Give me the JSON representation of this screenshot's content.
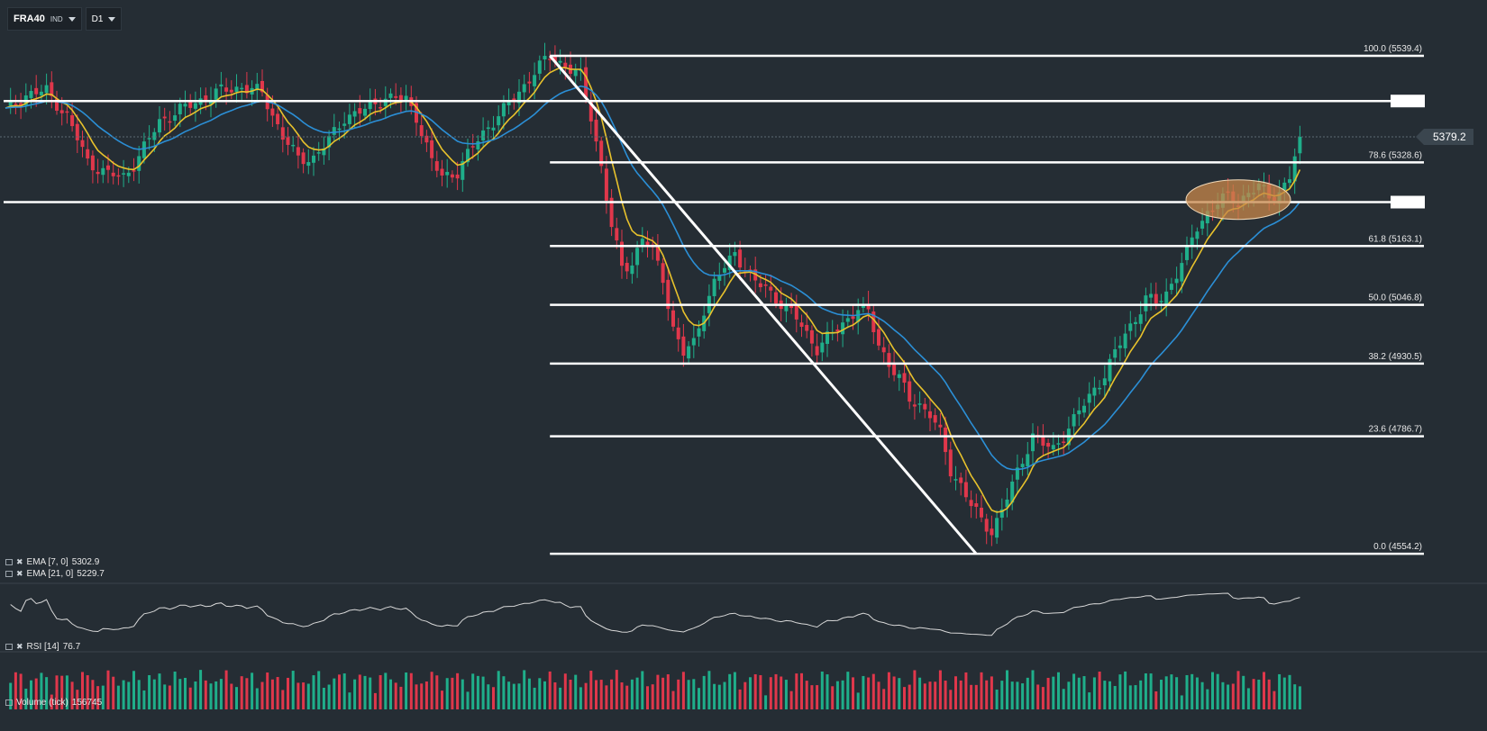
{
  "toolbar": {
    "symbol": "FRA40",
    "instrument_type": "IND",
    "timeframe": "D1"
  },
  "indicators": {
    "ema_fast": {
      "label": "EMA [7, 0]",
      "value": "5302.9",
      "color": "#e8c22c"
    },
    "ema_slow": {
      "label": "EMA [21, 0]",
      "value": "5229.7",
      "color": "#2b8fd6"
    },
    "rsi": {
      "label": "RSI [14]",
      "value": "76.7"
    },
    "volume": {
      "label": "Volume (tick)",
      "value": "156745"
    }
  },
  "current_price": "5379.2",
  "colors": {
    "background": "#252d34",
    "bull": "#1fae8a",
    "bear": "#e0374b",
    "level": "#ffffff",
    "highlight": "#c8874a"
  },
  "chart_data": {
    "type": "candlestick",
    "timeframe": "D1",
    "ylim": [
      4510,
      5600
    ],
    "current_price": 5379.2,
    "fibonacci_levels": [
      {
        "label": "100.0 (5539.4)",
        "ratio": 100.0,
        "value": 5539.4
      },
      {
        "label": "78.6 (5328.6)",
        "ratio": 78.6,
        "value": 5328.6
      },
      {
        "label": "61.8 (5163.1)",
        "ratio": 61.8,
        "value": 5163.1
      },
      {
        "label": "50.0 (5046.8)",
        "ratio": 50.0,
        "value": 5046.8
      },
      {
        "label": "38.2 (4930.5)",
        "ratio": 38.2,
        "value": 4930.5
      },
      {
        "label": "23.6 (4786.7)",
        "ratio": 23.6,
        "value": 4786.7
      },
      {
        "label": "0.0 (4554.2)",
        "ratio": 0.0,
        "value": 4554.2
      }
    ],
    "horizontal_levels": [
      5450,
      5250
    ],
    "price_path": [
      [
        0,
        5430
      ],
      [
        4,
        5462
      ],
      [
        8,
        5470
      ],
      [
        12,
        5420
      ],
      [
        16,
        5330
      ],
      [
        20,
        5305
      ],
      [
        23,
        5300
      ],
      [
        26,
        5340
      ],
      [
        30,
        5410
      ],
      [
        34,
        5432
      ],
      [
        38,
        5452
      ],
      [
        42,
        5470
      ],
      [
        46,
        5478
      ],
      [
        50,
        5466
      ],
      [
        54,
        5380
      ],
      [
        57,
        5335
      ],
      [
        60,
        5338
      ],
      [
        63,
        5372
      ],
      [
        66,
        5418
      ],
      [
        70,
        5432
      ],
      [
        74,
        5458
      ],
      [
        78,
        5452
      ],
      [
        80,
        5420
      ],
      [
        83,
        5330
      ],
      [
        85,
        5300
      ],
      [
        88,
        5310
      ],
      [
        91,
        5360
      ],
      [
        94,
        5400
      ],
      [
        97,
        5432
      ],
      [
        100,
        5468
      ],
      [
        103,
        5508
      ],
      [
        106,
        5539
      ],
      [
        109,
        5520
      ],
      [
        112,
        5498
      ],
      [
        114,
        5420
      ],
      [
        116,
        5320
      ],
      [
        118,
        5200
      ],
      [
        120,
        5120
      ],
      [
        122,
        5130
      ],
      [
        124,
        5180
      ],
      [
        126,
        5150
      ],
      [
        128,
        5100
      ],
      [
        130,
        5000
      ],
      [
        132,
        4950
      ],
      [
        134,
        4970
      ],
      [
        136,
        5040
      ],
      [
        138,
        5090
      ],
      [
        140,
        5120
      ],
      [
        142,
        5150
      ],
      [
        144,
        5120
      ],
      [
        146,
        5090
      ],
      [
        148,
        5080
      ],
      [
        150,
        5060
      ],
      [
        152,
        5040
      ],
      [
        154,
        5020
      ],
      [
        156,
        4990
      ],
      [
        158,
        4960
      ],
      [
        160,
        4980
      ],
      [
        162,
        5000
      ],
      [
        164,
        5020
      ],
      [
        166,
        5040
      ],
      [
        168,
        5030
      ],
      [
        170,
        4970
      ],
      [
        172,
        4930
      ],
      [
        174,
        4900
      ],
      [
        176,
        4860
      ],
      [
        178,
        4850
      ],
      [
        180,
        4830
      ],
      [
        182,
        4790
      ],
      [
        184,
        4720
      ],
      [
        186,
        4690
      ],
      [
        188,
        4650
      ],
      [
        190,
        4620
      ],
      [
        192,
        4600
      ],
      [
        194,
        4640
      ],
      [
        196,
        4690
      ],
      [
        198,
        4740
      ],
      [
        200,
        4790
      ],
      [
        202,
        4770
      ],
      [
        204,
        4760
      ],
      [
        206,
        4790
      ],
      [
        208,
        4820
      ],
      [
        210,
        4850
      ],
      [
        212,
        4880
      ],
      [
        214,
        4910
      ],
      [
        216,
        4950
      ],
      [
        218,
        4990
      ],
      [
        220,
        5020
      ],
      [
        222,
        5060
      ],
      [
        224,
        5050
      ],
      [
        226,
        5070
      ],
      [
        228,
        5110
      ],
      [
        230,
        5150
      ],
      [
        232,
        5200
      ],
      [
        234,
        5230
      ],
      [
        236,
        5250
      ],
      [
        238,
        5260
      ],
      [
        240,
        5250
      ],
      [
        242,
        5270
      ],
      [
        244,
        5280
      ],
      [
        246,
        5260
      ],
      [
        248,
        5270
      ],
      [
        250,
        5300
      ],
      [
        252,
        5379.2
      ]
    ]
  }
}
